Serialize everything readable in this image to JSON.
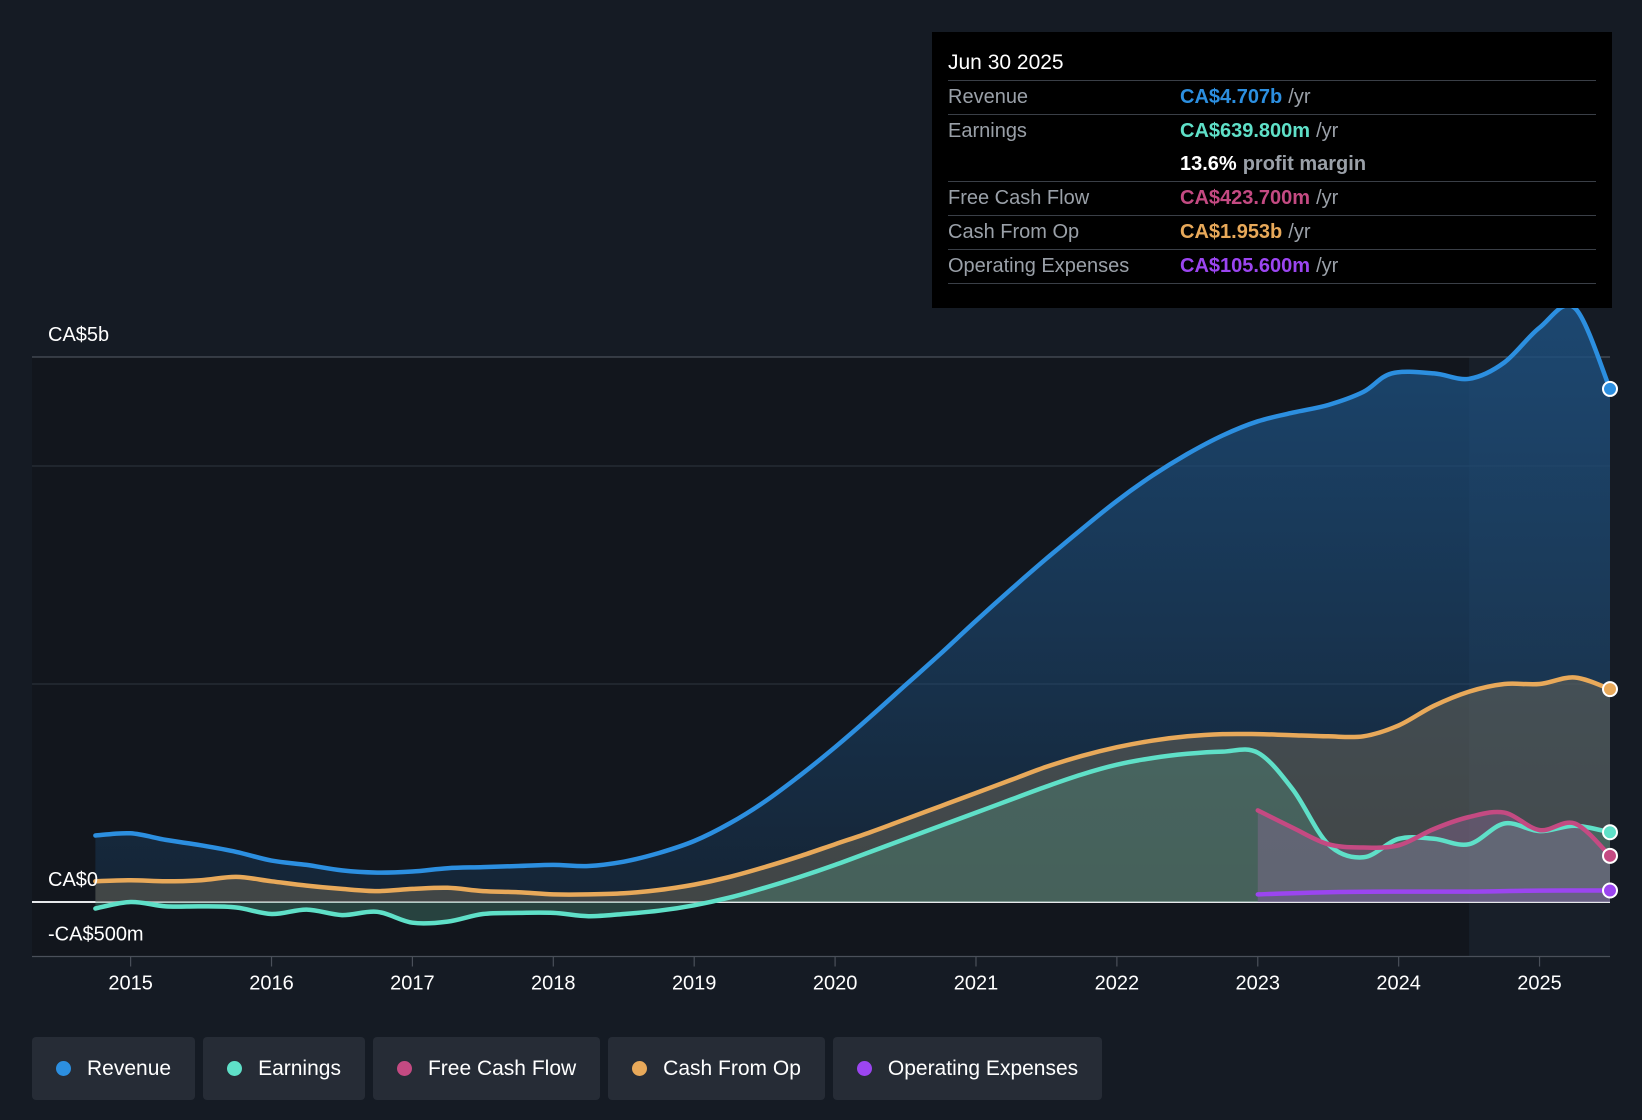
{
  "chart_data": {
    "type": "area",
    "title": "",
    "xlabel": "",
    "ylabel": "",
    "xlim": [
      2014.3,
      2025.5
    ],
    "ylim": [
      -500,
      5000
    ],
    "y_labels": [
      "CA$5b",
      "CA$0",
      "-CA$500m"
    ],
    "y_label_values": [
      5000,
      0,
      -500
    ],
    "gridlines": [
      5000,
      4000,
      2000,
      0,
      -500
    ],
    "x_ticks": [
      "2015",
      "2016",
      "2017",
      "2018",
      "2019",
      "2020",
      "2021",
      "2022",
      "2023",
      "2024",
      "2025"
    ],
    "x_tick_values": [
      2015,
      2016,
      2017,
      2018,
      2019,
      2020,
      2021,
      2022,
      2023,
      2024,
      2025
    ],
    "highlight_from": 2024.5,
    "series": [
      {
        "name": "Revenue",
        "color": "#2c8fe0",
        "points": [
          [
            2014.75,
            610
          ],
          [
            2015.0,
            630
          ],
          [
            2015.25,
            570
          ],
          [
            2015.5,
            520
          ],
          [
            2015.75,
            460
          ],
          [
            2016.0,
            380
          ],
          [
            2016.25,
            340
          ],
          [
            2016.5,
            290
          ],
          [
            2016.75,
            270
          ],
          [
            2017.0,
            280
          ],
          [
            2017.25,
            310
          ],
          [
            2017.5,
            320
          ],
          [
            2017.75,
            330
          ],
          [
            2018.0,
            340
          ],
          [
            2018.25,
            330
          ],
          [
            2018.5,
            370
          ],
          [
            2018.75,
            450
          ],
          [
            2019.0,
            560
          ],
          [
            2019.25,
            720
          ],
          [
            2019.5,
            920
          ],
          [
            2019.75,
            1160
          ],
          [
            2020.0,
            1420
          ],
          [
            2020.25,
            1700
          ],
          [
            2020.5,
            1990
          ],
          [
            2020.75,
            2280
          ],
          [
            2021.0,
            2580
          ],
          [
            2021.25,
            2870
          ],
          [
            2021.5,
            3150
          ],
          [
            2021.75,
            3420
          ],
          [
            2022.0,
            3680
          ],
          [
            2022.25,
            3910
          ],
          [
            2022.5,
            4110
          ],
          [
            2022.75,
            4280
          ],
          [
            2023.0,
            4410
          ],
          [
            2023.25,
            4490
          ],
          [
            2023.5,
            4560
          ],
          [
            2023.75,
            4680
          ],
          [
            2023.95,
            4850
          ],
          [
            2024.25,
            4850
          ],
          [
            2024.5,
            4800
          ],
          [
            2024.75,
            4950
          ],
          [
            2025.0,
            5270
          ],
          [
            2025.25,
            5450
          ],
          [
            2025.5,
            4707
          ]
        ]
      },
      {
        "name": "Cash From Op",
        "color": "#e8a95a",
        "points": [
          [
            2014.75,
            190
          ],
          [
            2015.0,
            200
          ],
          [
            2015.25,
            190
          ],
          [
            2015.5,
            200
          ],
          [
            2015.75,
            230
          ],
          [
            2016.0,
            190
          ],
          [
            2016.25,
            150
          ],
          [
            2016.5,
            120
          ],
          [
            2016.75,
            100
          ],
          [
            2017.0,
            120
          ],
          [
            2017.25,
            130
          ],
          [
            2017.5,
            100
          ],
          [
            2017.75,
            90
          ],
          [
            2018.0,
            70
          ],
          [
            2018.25,
            70
          ],
          [
            2018.5,
            80
          ],
          [
            2018.75,
            110
          ],
          [
            2019.0,
            160
          ],
          [
            2019.25,
            230
          ],
          [
            2019.5,
            320
          ],
          [
            2019.75,
            420
          ],
          [
            2020.0,
            530
          ],
          [
            2020.25,
            640
          ],
          [
            2020.5,
            760
          ],
          [
            2020.75,
            880
          ],
          [
            2021.0,
            1000
          ],
          [
            2021.25,
            1120
          ],
          [
            2021.5,
            1240
          ],
          [
            2021.75,
            1340
          ],
          [
            2022.0,
            1420
          ],
          [
            2022.25,
            1480
          ],
          [
            2022.5,
            1520
          ],
          [
            2022.75,
            1540
          ],
          [
            2023.0,
            1540
          ],
          [
            2023.25,
            1530
          ],
          [
            2023.5,
            1520
          ],
          [
            2023.75,
            1520
          ],
          [
            2024.0,
            1620
          ],
          [
            2024.25,
            1800
          ],
          [
            2024.5,
            1930
          ],
          [
            2024.75,
            2000
          ],
          [
            2025.0,
            2000
          ],
          [
            2025.25,
            2060
          ],
          [
            2025.5,
            1953
          ]
        ]
      },
      {
        "name": "Earnings",
        "color": "#5fe0c8",
        "points": [
          [
            2014.75,
            -60
          ],
          [
            2015.0,
            0
          ],
          [
            2015.25,
            -40
          ],
          [
            2015.5,
            -40
          ],
          [
            2015.75,
            -50
          ],
          [
            2016.0,
            -110
          ],
          [
            2016.25,
            -70
          ],
          [
            2016.5,
            -120
          ],
          [
            2016.75,
            -90
          ],
          [
            2017.0,
            -190
          ],
          [
            2017.25,
            -180
          ],
          [
            2017.5,
            -110
          ],
          [
            2017.75,
            -100
          ],
          [
            2018.0,
            -100
          ],
          [
            2018.25,
            -130
          ],
          [
            2018.5,
            -110
          ],
          [
            2018.75,
            -80
          ],
          [
            2019.0,
            -30
          ],
          [
            2019.25,
            40
          ],
          [
            2019.5,
            130
          ],
          [
            2019.75,
            230
          ],
          [
            2020.0,
            340
          ],
          [
            2020.25,
            460
          ],
          [
            2020.5,
            580
          ],
          [
            2020.75,
            700
          ],
          [
            2021.0,
            820
          ],
          [
            2021.25,
            940
          ],
          [
            2021.5,
            1060
          ],
          [
            2021.75,
            1170
          ],
          [
            2022.0,
            1260
          ],
          [
            2022.25,
            1320
          ],
          [
            2022.5,
            1360
          ],
          [
            2022.75,
            1380
          ],
          [
            2023.0,
            1370
          ],
          [
            2023.25,
            1030
          ],
          [
            2023.5,
            530
          ],
          [
            2023.75,
            410
          ],
          [
            2024.0,
            580
          ],
          [
            2024.25,
            580
          ],
          [
            2024.5,
            530
          ],
          [
            2024.75,
            720
          ],
          [
            2025.0,
            650
          ],
          [
            2025.25,
            700
          ],
          [
            2025.5,
            639.8
          ]
        ]
      },
      {
        "name": "Free Cash Flow",
        "color": "#c44a82",
        "points": [
          [
            2023.0,
            840
          ],
          [
            2023.25,
            680
          ],
          [
            2023.5,
            530
          ],
          [
            2023.75,
            500
          ],
          [
            2024.0,
            520
          ],
          [
            2024.25,
            670
          ],
          [
            2024.5,
            780
          ],
          [
            2024.75,
            820
          ],
          [
            2025.0,
            660
          ],
          [
            2025.25,
            720
          ],
          [
            2025.5,
            423.7
          ]
        ]
      },
      {
        "name": "Operating Expenses",
        "color": "#9b45f0",
        "points": [
          [
            2023.0,
            70
          ],
          [
            2023.5,
            90
          ],
          [
            2024.0,
            95
          ],
          [
            2024.5,
            95
          ],
          [
            2025.0,
            105
          ],
          [
            2025.5,
            105.6
          ]
        ]
      }
    ]
  },
  "tooltip": {
    "date": "Jun 30 2025",
    "revenue_label": "Revenue",
    "revenue_value": "CA$4.707b",
    "earnings_label": "Earnings",
    "earnings_value": "CA$639.800m",
    "profit_margin_value": "13.6%",
    "profit_margin_text": "profit margin",
    "fcf_label": "Free Cash Flow",
    "fcf_value": "CA$423.700m",
    "cfo_label": "Cash From Op",
    "cfo_value": "CA$1.953b",
    "opex_label": "Operating Expenses",
    "opex_value": "CA$105.600m",
    "unit": "/yr",
    "colors": {
      "revenue": "#2c8fe0",
      "earnings": "#5fe0c8",
      "fcf": "#c44a82",
      "cfo": "#e8a95a",
      "opex": "#9b45f0"
    }
  },
  "legend": [
    {
      "label": "Revenue",
      "color": "#2c8fe0"
    },
    {
      "label": "Earnings",
      "color": "#5fe0c8"
    },
    {
      "label": "Free Cash Flow",
      "color": "#c44a82"
    },
    {
      "label": "Cash From Op",
      "color": "#e8a95a"
    },
    {
      "label": "Operating Expenses",
      "color": "#9b45f0"
    }
  ]
}
